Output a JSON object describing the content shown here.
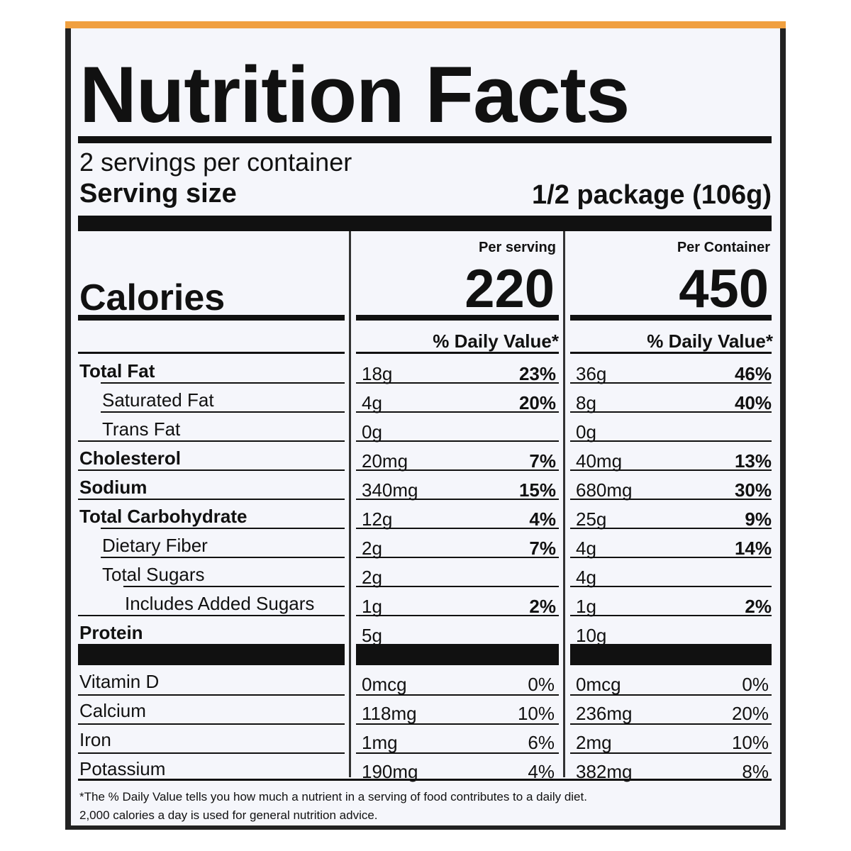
{
  "title": "Nutrition Facts",
  "servings_per_container": "2 servings per container",
  "serving_size_label": "Serving size",
  "serving_size_value": "1/2 package (106g)",
  "columns": {
    "per_serving": "Per serving",
    "per_container": "Per Container"
  },
  "calories": {
    "label": "Calories",
    "per_serving": "220",
    "per_container": "450"
  },
  "daily_value_header": "% Daily Value*",
  "nutrients": [
    {
      "name": "Total Fat",
      "bold": true,
      "indent": 0,
      "s_amt": "18g",
      "s_dv": "23%",
      "c_amt": "36g",
      "c_dv": "46%"
    },
    {
      "name": "Saturated Fat",
      "bold": false,
      "indent": 1,
      "s_amt": "4g",
      "s_dv": "20%",
      "c_amt": "8g",
      "c_dv": "40%"
    },
    {
      "name": "Trans Fat",
      "bold": false,
      "indent": 1,
      "s_amt": "0g",
      "s_dv": "",
      "c_amt": "0g",
      "c_dv": ""
    },
    {
      "name": "Cholesterol",
      "bold": true,
      "indent": 0,
      "s_amt": "20mg",
      "s_dv": "7%",
      "c_amt": "40mg",
      "c_dv": "13%"
    },
    {
      "name": "Sodium",
      "bold": true,
      "indent": 0,
      "s_amt": "340mg",
      "s_dv": "15%",
      "c_amt": "680mg",
      "c_dv": "30%"
    },
    {
      "name": "Total Carbohydrate",
      "bold": true,
      "indent": 0,
      "s_amt": "12g",
      "s_dv": "4%",
      "c_amt": "25g",
      "c_dv": "9%"
    },
    {
      "name": "Dietary Fiber",
      "bold": false,
      "indent": 1,
      "s_amt": "2g",
      "s_dv": "7%",
      "c_amt": "4g",
      "c_dv": "14%"
    },
    {
      "name": "Total Sugars",
      "bold": false,
      "indent": 1,
      "s_amt": "2g",
      "s_dv": "",
      "c_amt": "4g",
      "c_dv": ""
    },
    {
      "name": "Includes Added Sugars",
      "bold": false,
      "indent": 2,
      "s_amt": "1g",
      "s_dv": "2%",
      "c_amt": "1g",
      "c_dv": "2%"
    },
    {
      "name": "Protein",
      "bold": true,
      "indent": 0,
      "s_amt": "5g",
      "s_dv": "",
      "c_amt": "10g",
      "c_dv": ""
    }
  ],
  "vitamins": [
    {
      "name": "Vitamin D",
      "s_amt": "0mcg",
      "s_dv": "0%",
      "c_amt": "0mcg",
      "c_dv": "0%"
    },
    {
      "name": "Calcium",
      "s_amt": "118mg",
      "s_dv": "10%",
      "c_amt": "236mg",
      "c_dv": "20%"
    },
    {
      "name": "Iron",
      "s_amt": "1mg",
      "s_dv": "6%",
      "c_amt": "2mg",
      "c_dv": "10%"
    },
    {
      "name": "Potassium",
      "s_amt": "190mg",
      "s_dv": "4%",
      "c_amt": "382mg",
      "c_dv": "8%"
    }
  ],
  "footnote_line1": "*The % Daily Value tells you how much a nutrient in a serving of food contributes to a daily diet.",
  "footnote_line2": "2,000 calories a day is used for general nutrition advice.",
  "colors": {
    "accent": "#f0a040",
    "ink": "#111111",
    "panel": "#f5f6fb"
  }
}
